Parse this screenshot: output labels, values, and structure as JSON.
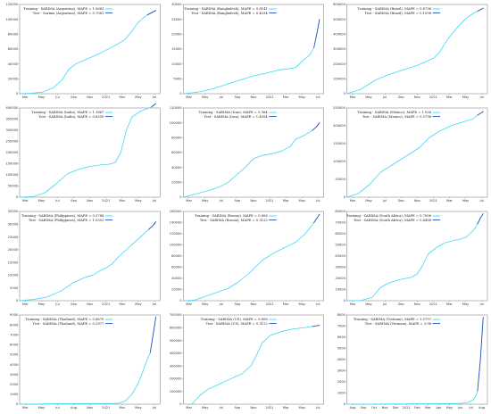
{
  "legend_colors": {
    "training": "#3fd7f6",
    "test": "#1b4fbd"
  },
  "chart_data": [
    {
      "type": "line",
      "country": "Argentina",
      "legend": [
        "Training - SARIMA (Argentina), MAPE = 1.0683",
        "Test - Sarima (Argentina), MAPE = 0.7081"
      ],
      "ylim": [
        0,
        120000
      ],
      "yticks": [
        0,
        20000,
        40000,
        60000,
        80000,
        100000,
        120000
      ],
      "x_tick_labels": [
        "Mar",
        "May",
        "Jul",
        "Sep",
        "Nov",
        "2021",
        "Mar",
        "May",
        "Jul"
      ],
      "series": [
        {
          "role": "training",
          "x": [
            0,
            0.08,
            0.16,
            0.24,
            0.3,
            0.35,
            0.4,
            0.46,
            0.52,
            0.58,
            0.64,
            0.7,
            0.75,
            0.8,
            0.84,
            0.88,
            0.91
          ],
          "y": [
            0,
            500,
            2000,
            8000,
            18000,
            33000,
            40000,
            45000,
            50000,
            55000,
            61000,
            67000,
            73000,
            84000,
            95000,
            102000,
            106000
          ]
        },
        {
          "role": "test",
          "x": [
            0.91,
            0.94,
            0.97
          ],
          "y": [
            106000,
            109000,
            112000
          ]
        }
      ]
    },
    {
      "type": "line",
      "country": "Bangladesh",
      "legend": [
        "Training - SARIMA (Bangladesh), MAPE = 0.8141",
        "Test - SARIMA (Bangladesh), MAPE = 0.4334"
      ],
      "ylim": [
        0,
        30000
      ],
      "yticks": [
        0,
        5000,
        10000,
        15000,
        20000,
        25000,
        30000
      ],
      "x_tick_labels": [
        "Mar",
        "May",
        "Jul",
        "Sep",
        "Nov",
        "2021",
        "Mar",
        "May",
        "Jul"
      ],
      "series": [
        {
          "role": "training",
          "x": [
            0,
            0.1,
            0.2,
            0.3,
            0.4,
            0.5,
            0.6,
            0.68,
            0.74,
            0.8,
            0.86,
            0.9,
            0.93
          ],
          "y": [
            0,
            500,
            1500,
            3000,
            4500,
            6000,
            7000,
            8000,
            8300,
            8800,
            11500,
            13000,
            15500
          ]
        },
        {
          "role": "test",
          "x": [
            0.93,
            0.95,
            0.97
          ],
          "y": [
            15500,
            20000,
            25000
          ]
        }
      ]
    },
    {
      "type": "line",
      "country": "Brazil",
      "legend": [
        "Training - SARIMA (Brazil), MAPE = 0.6796",
        "Test - SARIMA (Brazil), MAPE = 0.1098"
      ],
      "ylim": [
        0,
        600000
      ],
      "yticks": [
        0,
        100000,
        200000,
        300000,
        400000,
        500000,
        600000
      ],
      "x_tick_labels": [
        "Mar",
        "May",
        "Jul",
        "Sep",
        "Nov",
        "2021",
        "Mar",
        "May",
        "Jul"
      ],
      "series": [
        {
          "role": "training",
          "x": [
            0,
            0.1,
            0.2,
            0.3,
            0.4,
            0.5,
            0.55,
            0.62,
            0.66,
            0.72,
            0.78,
            0.84,
            0.9,
            0.93
          ],
          "y": [
            0,
            30000,
            90000,
            130000,
            160000,
            190000,
            210000,
            240000,
            280000,
            370000,
            440000,
            500000,
            540000,
            555000
          ]
        },
        {
          "role": "test",
          "x": [
            0.93,
            0.97
          ],
          "y": [
            555000,
            575000
          ]
        }
      ]
    },
    {
      "type": "line",
      "country": "India",
      "legend": [
        "Training - SARIMA (India), MAPE = 1.1867",
        "Test - SARIMA (India), MAPE = 0.6559"
      ],
      "ylim": [
        0,
        400000
      ],
      "yticks": [
        0,
        50000,
        100000,
        150000,
        200000,
        250000,
        300000,
        350000,
        400000
      ],
      "x_tick_labels": [
        "Mar",
        "May",
        "Jul",
        "Sep",
        "Nov",
        "2021",
        "Mar",
        "May",
        "Jul"
      ],
      "series": [
        {
          "role": "training",
          "x": [
            0,
            0.1,
            0.18,
            0.26,
            0.34,
            0.42,
            0.5,
            0.58,
            0.64,
            0.68,
            0.72,
            0.76,
            0.8,
            0.86,
            0.92,
            0.94
          ],
          "y": [
            0,
            3000,
            20000,
            60000,
            105000,
            125000,
            138000,
            145000,
            148000,
            155000,
            200000,
            300000,
            360000,
            385000,
            400000,
            405000
          ]
        },
        {
          "role": "test",
          "x": [
            0.94,
            0.97
          ],
          "y": [
            405000,
            420000
          ]
        }
      ]
    },
    {
      "type": "line",
      "country": "Iran",
      "legend": [
        "Training - SARIMA (Iran), MAPE = 0.364",
        "Test - SARIMA (Iran), MAPE = 1.4504"
      ],
      "ylim": [
        0,
        120000
      ],
      "yticks": [
        0,
        20000,
        40000,
        60000,
        80000,
        100000,
        120000
      ],
      "x_tick_labels": [
        "Mar",
        "May",
        "Jul",
        "Sep",
        "Nov",
        "2021",
        "Mar",
        "May",
        "Jul"
      ],
      "series": [
        {
          "role": "training",
          "x": [
            0,
            0.1,
            0.2,
            0.26,
            0.32,
            0.38,
            0.44,
            0.5,
            0.56,
            0.62,
            0.7,
            0.76,
            0.8,
            0.86,
            0.92
          ],
          "y": [
            0,
            5000,
            10000,
            14000,
            20000,
            30000,
            40000,
            52000,
            56000,
            58000,
            62000,
            68000,
            78000,
            83000,
            90000
          ]
        },
        {
          "role": "test",
          "x": [
            0.92,
            0.95,
            0.97
          ],
          "y": [
            90000,
            95000,
            100000
          ]
        }
      ]
    },
    {
      "type": "line",
      "country": "Mexico",
      "legend": [
        "Training - SARIMA (Mexico), MAPE = 1.026",
        "Test - SARIMA (Mexico), MAPE = 0.5796"
      ],
      "ylim": [
        0,
        250000
      ],
      "yticks": [
        0,
        50000,
        100000,
        150000,
        200000,
        250000
      ],
      "x_tick_labels": [
        "Mar",
        "May",
        "Jul",
        "Sep",
        "Nov",
        "2021",
        "Mar",
        "May",
        "Jul"
      ],
      "series": [
        {
          "role": "training",
          "x": [
            0,
            0.08,
            0.16,
            0.24,
            0.34,
            0.44,
            0.52,
            0.58,
            0.66,
            0.74,
            0.82,
            0.9,
            0.93
          ],
          "y": [
            0,
            10000,
            35000,
            70000,
            95000,
            120000,
            140000,
            165000,
            185000,
            200000,
            210000,
            220000,
            230000
          ]
        },
        {
          "role": "test",
          "x": [
            0.93,
            0.97
          ],
          "y": [
            230000,
            240000
          ]
        }
      ]
    },
    {
      "type": "line",
      "country": "Philippines",
      "legend": [
        "Training - SARIMA (Philippines), MAPE = 0.5768",
        "Test - SARIMA (Philippines), MAPE = 1.0353"
      ],
      "ylim": [
        0,
        35000
      ],
      "yticks": [
        0,
        5000,
        10000,
        15000,
        20000,
        25000,
        30000,
        35000
      ],
      "x_tick_labels": [
        "Mar",
        "May",
        "Jul",
        "Sep",
        "Nov",
        "2021",
        "Mar",
        "May",
        "Jul"
      ],
      "series": [
        {
          "role": "training",
          "x": [
            0,
            0.1,
            0.2,
            0.3,
            0.38,
            0.46,
            0.52,
            0.58,
            0.62,
            0.66,
            0.7,
            0.76,
            0.82,
            0.88,
            0.92
          ],
          "y": [
            0,
            500,
            1500,
            4000,
            7000,
            9000,
            10000,
            12000,
            13000,
            14500,
            17000,
            20000,
            23000,
            26000,
            28000
          ]
        },
        {
          "role": "test",
          "x": [
            0.92,
            0.95,
            0.97
          ],
          "y": [
            28000,
            29500,
            31000
          ]
        }
      ]
    },
    {
      "type": "line",
      "country": "Russia",
      "legend": [
        "Training - SARIMA (Russia), MAPE = 0.606",
        "Test - SARIMA (Russia), MAPE = 0.3122"
      ],
      "ylim": [
        0,
        160000
      ],
      "yticks": [
        0,
        20000,
        40000,
        60000,
        80000,
        100000,
        120000,
        140000,
        160000
      ],
      "x_tick_labels": [
        "Mar",
        "May",
        "Jul",
        "Sep",
        "Nov",
        "2021",
        "Mar",
        "May",
        "Jul"
      ],
      "series": [
        {
          "role": "training",
          "x": [
            0,
            0.08,
            0.16,
            0.24,
            0.32,
            0.4,
            0.48,
            0.56,
            0.64,
            0.72,
            0.8,
            0.86,
            0.9,
            0.93
          ],
          "y": [
            0,
            1000,
            8000,
            15000,
            22000,
            35000,
            52000,
            72000,
            85000,
            95000,
            105000,
            118000,
            130000,
            140000
          ]
        },
        {
          "role": "test",
          "x": [
            0.93,
            0.97
          ],
          "y": [
            140000,
            155000
          ]
        }
      ]
    },
    {
      "type": "line",
      "country": "South Africa",
      "legend": [
        "Training - SARIMA (South Africa), MAPE = 0.7006",
        "Test - SARIMA (South Africa), MAPE = 0.4488"
      ],
      "ylim": [
        0,
        80000
      ],
      "yticks": [
        0,
        10000,
        20000,
        30000,
        40000,
        50000,
        60000,
        70000,
        80000
      ],
      "x_tick_labels": [
        "Mar",
        "May",
        "Jul",
        "Sep",
        "Nov",
        "2021",
        "Mar",
        "May",
        "Jul"
      ],
      "series": [
        {
          "role": "training",
          "x": [
            0,
            0.1,
            0.18,
            0.24,
            0.3,
            0.38,
            0.46,
            0.5,
            0.54,
            0.58,
            0.64,
            0.7,
            0.76,
            0.8,
            0.85,
            0.9,
            0.93
          ],
          "y": [
            0,
            200,
            3000,
            12000,
            16000,
            19000,
            21000,
            24000,
            32000,
            42000,
            48000,
            52000,
            54000,
            55000,
            57000,
            63000,
            69000
          ]
        },
        {
          "role": "test",
          "x": [
            0.93,
            0.95,
            0.97
          ],
          "y": [
            69000,
            74000,
            78000
          ]
        }
      ]
    },
    {
      "type": "line",
      "country": "Thailand",
      "legend": [
        "Training - SARIMA (Thailand), MAPE = 0.8679",
        "Test - SARIMA (Thailand), MAPE = 0.2977"
      ],
      "ylim": [
        0,
        9000
      ],
      "yticks": [
        0,
        1000,
        2000,
        3000,
        4000,
        5000,
        6000,
        7000,
        8000,
        9000
      ],
      "x_tick_labels": [
        "Mar",
        "May",
        "Jul",
        "Aug",
        "Nov",
        "2021",
        "Mar",
        "May",
        "Jul"
      ],
      "series": [
        {
          "role": "training",
          "x": [
            0,
            0.2,
            0.4,
            0.6,
            0.7,
            0.75,
            0.8,
            0.84,
            0.87,
            0.9,
            0.93
          ],
          "y": [
            0,
            30,
            50,
            60,
            80,
            300,
            1000,
            2000,
            3000,
            4200,
            5200
          ]
        },
        {
          "role": "test",
          "x": [
            0.93,
            0.95,
            0.97
          ],
          "y": [
            5200,
            7000,
            8800
          ]
        }
      ]
    },
    {
      "type": "line",
      "country": "US",
      "legend": [
        "Training - SARIMA (US), MAPE = 0.606",
        "Test - SARIMA (US), MAPE = 0.3122"
      ],
      "ylim": [
        0,
        700000
      ],
      "yticks": [
        0,
        100000,
        200000,
        300000,
        400000,
        500000,
        600000,
        700000
      ],
      "x_tick_labels": [
        "Mar",
        "May",
        "Jul",
        "Sep",
        "Nov",
        "2021",
        "Mar",
        "May",
        "Jul"
      ],
      "series": [
        {
          "role": "training",
          "x": [
            0.06,
            0.12,
            0.18,
            0.26,
            0.34,
            0.42,
            0.48,
            0.52,
            0.56,
            0.62,
            0.7,
            0.78,
            0.86,
            0.92
          ],
          "y": [
            0,
            70000,
            120000,
            160000,
            200000,
            240000,
            300000,
            380000,
            480000,
            540000,
            570000,
            590000,
            600000,
            610000
          ]
        },
        {
          "role": "test",
          "x": [
            0.92,
            0.97
          ],
          "y": [
            610000,
            618000
          ]
        }
      ]
    },
    {
      "type": "line",
      "country": "Vietnam",
      "legend": [
        "Training - SARIMA (Vietnam), MAPE = 1.5797",
        "Test - SARIMA (Vietnam), MAPE = 3.98"
      ],
      "ylim": [
        0,
        8000
      ],
      "yticks": [
        0,
        1000,
        2000,
        3000,
        4000,
        5000,
        6000,
        7000,
        8000
      ],
      "x_tick_labels": [
        "Aug",
        "Sep",
        "Oct",
        "Nov",
        "Dec",
        "2021",
        "Feb",
        "Mar",
        "Apr",
        "May",
        "Jun",
        "Jul",
        "Aug"
      ],
      "series": [
        {
          "role": "training",
          "x": [
            0,
            0.3,
            0.6,
            0.8,
            0.86,
            0.9,
            0.92,
            0.93
          ],
          "y": [
            0,
            20,
            40,
            60,
            150,
            400,
            800,
            1200
          ]
        },
        {
          "role": "test",
          "x": [
            0.93,
            0.95,
            0.97
          ],
          "y": [
            1200,
            4000,
            7800
          ]
        }
      ]
    }
  ]
}
